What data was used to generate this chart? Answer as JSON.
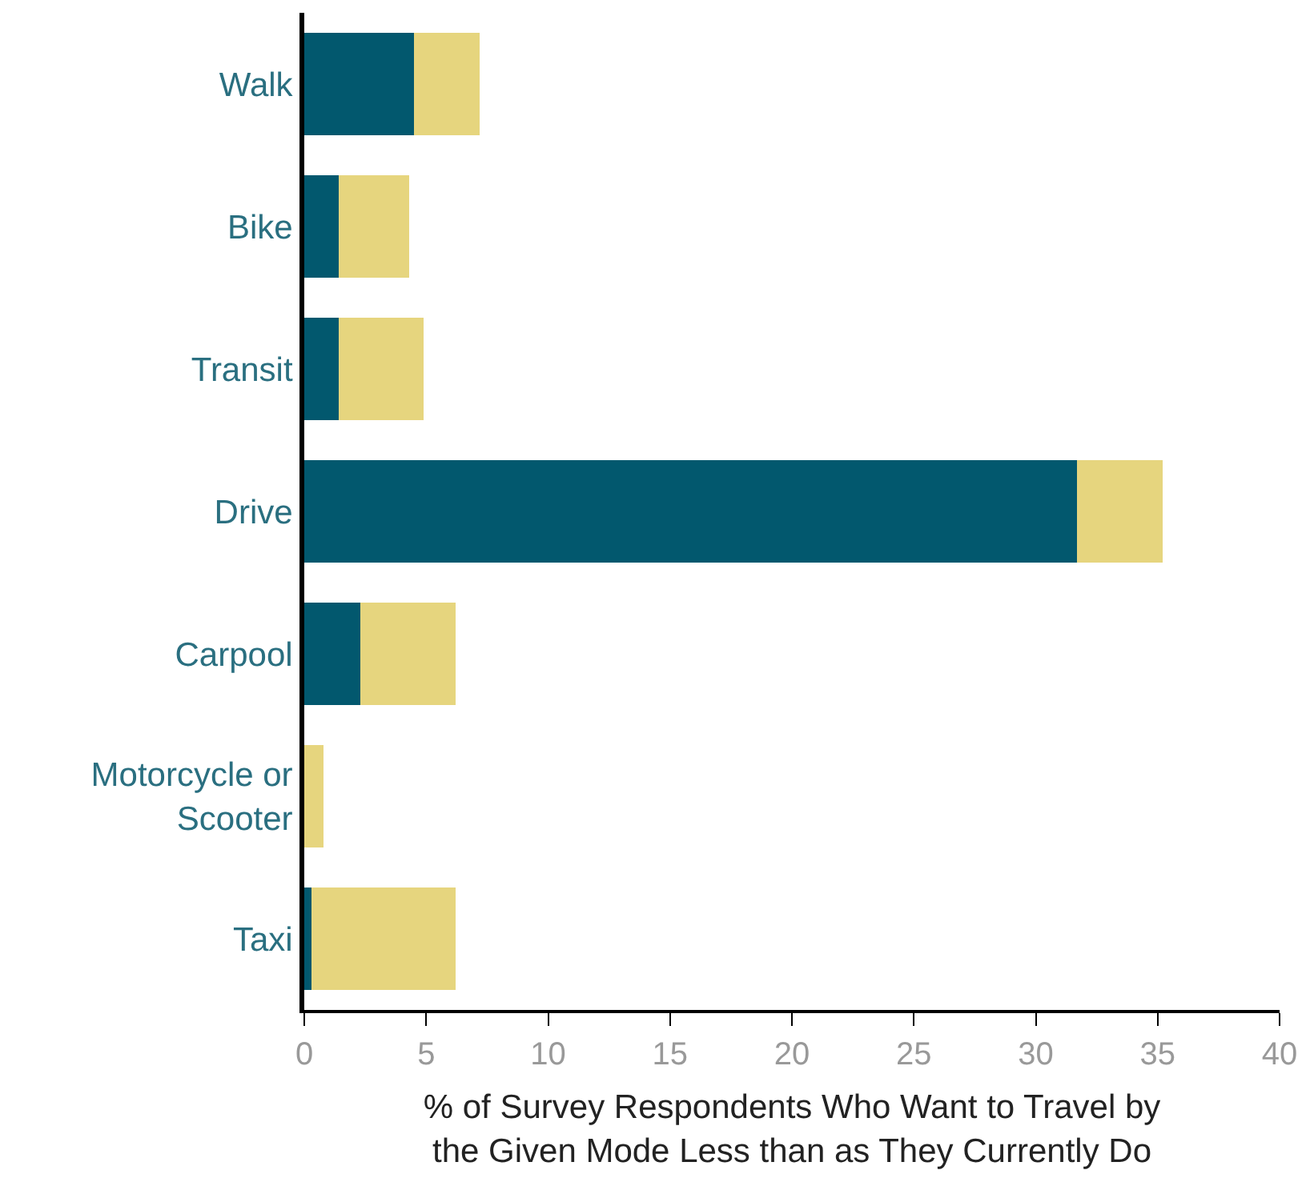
{
  "chart_data": {
    "type": "bar",
    "orientation": "horizontal",
    "stacked": true,
    "categories": [
      "Walk",
      "Bike",
      "Transit",
      "Drive",
      "Carpool",
      "Motorcycle or\nScooter",
      "Taxi"
    ],
    "series": [
      {
        "color": "#02586e",
        "values": [
          4.5,
          1.4,
          1.4,
          31.7,
          2.3,
          0,
          0.3
        ]
      },
      {
        "color": "#e6d57e",
        "values": [
          2.7,
          2.9,
          3.5,
          3.5,
          3.9,
          0.8,
          5.9
        ]
      }
    ],
    "xlim": [
      0,
      40
    ],
    "xticks": [
      0,
      5,
      10,
      15,
      20,
      25,
      30,
      35,
      40
    ],
    "xlabel": "% of Survey Respondents Who Want to Travel by\nthe Given Mode Less than as They Currently Do",
    "legend": false
  }
}
